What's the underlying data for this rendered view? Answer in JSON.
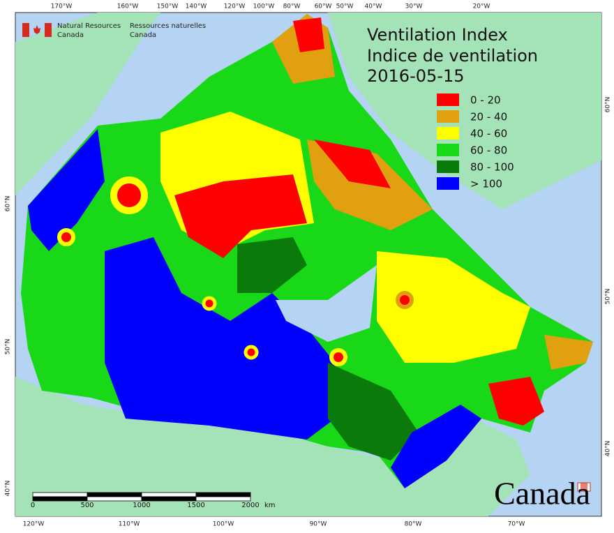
{
  "header": {
    "agency_en": [
      "Natural Resources",
      "Canada"
    ],
    "agency_fr": [
      "Ressources naturelles",
      "Canada"
    ]
  },
  "title": [
    "Ventilation Index",
    "Indice de ventilation",
    "2016-05-15"
  ],
  "legend": [
    {
      "label": "0 - 20",
      "color": "#ff0000"
    },
    {
      "label": "20 - 40",
      "color": "#e0a010"
    },
    {
      "label": "40 - 60",
      "color": "#ffff00"
    },
    {
      "label": "60 - 80",
      "color": "#18d818"
    },
    {
      "label": "80 - 100",
      "color": "#0a7a0a"
    },
    {
      "label": "> 100",
      "color": "#0000ff"
    }
  ],
  "graticule": {
    "top": [
      "170°W",
      "160°W",
      "150°W",
      "140°W",
      "120°W",
      "100°W",
      "80°W",
      "60°W",
      "50°W",
      "40°W",
      "30°W",
      "20°W"
    ],
    "bottom": [
      "120°W",
      "110°W",
      "100°W",
      "90°W",
      "80°W",
      "70°W"
    ],
    "left": [
      "60°N",
      "50°N",
      "40°N"
    ],
    "right": [
      "60°N",
      "50°N",
      "40°N"
    ]
  },
  "scale_bar": {
    "ticks": [
      0,
      500,
      1000,
      1500,
      2000
    ],
    "unit": "km"
  },
  "wordmark": "Canada"
}
